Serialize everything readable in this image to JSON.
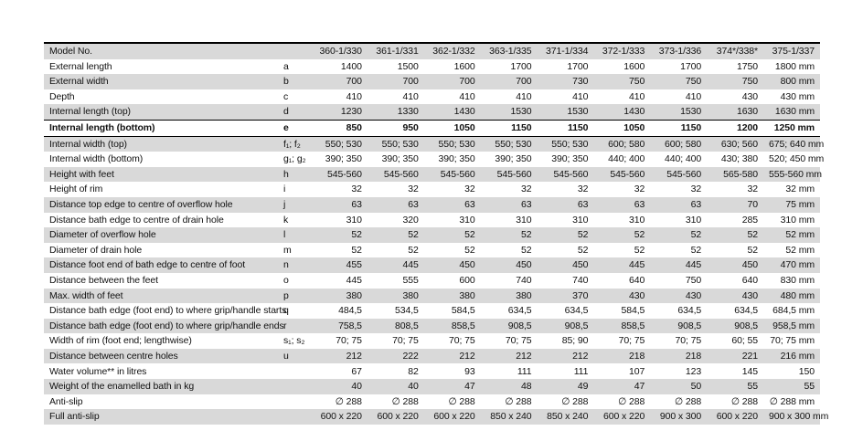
{
  "page": {
    "background": "#ffffff"
  },
  "table": {
    "top_border_color": "#000000",
    "stripe_color": "#d9d9d9",
    "header": {
      "model_label": "Model No.",
      "columns": [
        "360-1/330",
        "361-1/331",
        "362-1/332",
        "363-1/335",
        "371-1/334",
        "372-1/333",
        "373-1/336",
        "374*/338*",
        "375-1/337"
      ]
    },
    "rows": [
      {
        "label": "External length",
        "code": "a",
        "emph": false,
        "values": [
          "1400",
          "1500",
          "1600",
          "1700",
          "1700",
          "1600",
          "1700",
          "1750",
          "1800 mm"
        ]
      },
      {
        "label": "External width",
        "code": "b",
        "emph": false,
        "values": [
          "700",
          "700",
          "700",
          "700",
          "730",
          "750",
          "750",
          "750",
          "800 mm"
        ]
      },
      {
        "label": "Depth",
        "code": "c",
        "emph": false,
        "values": [
          "410",
          "410",
          "410",
          "410",
          "410",
          "410",
          "410",
          "430",
          "430 mm"
        ]
      },
      {
        "label": "Internal length (top)",
        "code": "d",
        "emph": false,
        "values": [
          "1230",
          "1330",
          "1430",
          "1530",
          "1530",
          "1430",
          "1530",
          "1630",
          "1630 mm"
        ]
      },
      {
        "label": "Internal length (bottom)",
        "code": "e",
        "emph": true,
        "values": [
          "850",
          "950",
          "1050",
          "1150",
          "1150",
          "1050",
          "1150",
          "1200",
          "1250 mm"
        ]
      },
      {
        "label": "Internal width (top)",
        "code": "f₁; f₂",
        "emph": false,
        "values": [
          "550; 530",
          "550; 530",
          "550; 530",
          "550; 530",
          "550; 530",
          "600; 580",
          "600; 580",
          "630; 560",
          "675; 640 mm"
        ]
      },
      {
        "label": "Internal width (bottom)",
        "code": "g₁; g₂",
        "emph": false,
        "values": [
          "390; 350",
          "390; 350",
          "390; 350",
          "390; 350",
          "390; 350",
          "440; 400",
          "440; 400",
          "430; 380",
          "520; 450 mm"
        ]
      },
      {
        "label": "Height with feet",
        "code": "h",
        "emph": false,
        "values": [
          "545-560",
          "545-560",
          "545-560",
          "545-560",
          "545-560",
          "545-560",
          "545-560",
          "565-580",
          "555-560 mm"
        ]
      },
      {
        "label": "Height of rim",
        "code": "i",
        "emph": false,
        "values": [
          "32",
          "32",
          "32",
          "32",
          "32",
          "32",
          "32",
          "32",
          "32 mm"
        ]
      },
      {
        "label": "Distance top edge to centre of overflow hole",
        "code": "j",
        "emph": false,
        "values": [
          "63",
          "63",
          "63",
          "63",
          "63",
          "63",
          "63",
          "70",
          "75 mm"
        ]
      },
      {
        "label": "Distance bath edge to centre of drain hole",
        "code": "k",
        "emph": false,
        "values": [
          "310",
          "320",
          "310",
          "310",
          "310",
          "310",
          "310",
          "285",
          "310 mm"
        ]
      },
      {
        "label": "Diameter of overflow hole",
        "code": "l",
        "emph": false,
        "values": [
          "52",
          "52",
          "52",
          "52",
          "52",
          "52",
          "52",
          "52",
          "52 mm"
        ]
      },
      {
        "label": "Diameter of drain hole",
        "code": "m",
        "emph": false,
        "values": [
          "52",
          "52",
          "52",
          "52",
          "52",
          "52",
          "52",
          "52",
          "52 mm"
        ]
      },
      {
        "label": "Distance foot end of bath edge to centre of foot",
        "code": "n",
        "emph": false,
        "values": [
          "455",
          "445",
          "450",
          "450",
          "450",
          "445",
          "445",
          "450",
          "470 mm"
        ]
      },
      {
        "label": "Distance between the feet",
        "code": "o",
        "emph": false,
        "values": [
          "445",
          "555",
          "600",
          "740",
          "740",
          "640",
          "750",
          "640",
          "830 mm"
        ]
      },
      {
        "label": "Max. width of feet",
        "code": "p",
        "emph": false,
        "values": [
          "380",
          "380",
          "380",
          "380",
          "370",
          "430",
          "430",
          "430",
          "480 mm"
        ]
      },
      {
        "label": "Distance bath edge (foot end) to where grip/handle starts",
        "code": "q",
        "emph": false,
        "values": [
          "484,5",
          "534,5",
          "584,5",
          "634,5",
          "634,5",
          "584,5",
          "634,5",
          "634,5",
          "684,5 mm"
        ]
      },
      {
        "label": "Distance bath edge (foot end) to where grip/handle ends",
        "code": "r",
        "emph": false,
        "values": [
          "758,5",
          "808,5",
          "858,5",
          "908,5",
          "908,5",
          "858,5",
          "908,5",
          "908,5",
          "958,5 mm"
        ]
      },
      {
        "label": "Width of rim (foot end; lengthwise)",
        "code": "s₁; s₂",
        "emph": false,
        "values": [
          "70; 75",
          "70; 75",
          "70; 75",
          "70; 75",
          "85; 90",
          "70; 75",
          "70; 75",
          "60; 55",
          "70; 75 mm"
        ]
      },
      {
        "label": "Distance between centre holes",
        "code": "u",
        "emph": false,
        "values": [
          "212",
          "222",
          "212",
          "212",
          "212",
          "218",
          "218",
          "221",
          "216 mm"
        ]
      },
      {
        "label": "Water volume** in litres",
        "code": "",
        "emph": false,
        "values": [
          "67",
          "82",
          "93",
          "111",
          "111",
          "107",
          "123",
          "145",
          "150"
        ]
      },
      {
        "label": "Weight of the enamelled bath in kg",
        "code": "",
        "emph": false,
        "values": [
          "40",
          "40",
          "47",
          "48",
          "49",
          "47",
          "50",
          "55",
          "55"
        ]
      },
      {
        "label": "Anti-slip",
        "code": "",
        "emph": false,
        "values": [
          "∅ 288",
          "∅ 288",
          "∅ 288",
          "∅ 288",
          "∅ 288",
          "∅ 288",
          "∅ 288",
          "∅ 288",
          "∅ 288 mm"
        ]
      },
      {
        "label": "Full anti-slip",
        "code": "",
        "emph": false,
        "values": [
          "600 x 220",
          "600 x 220",
          "600 x 220",
          "850 x 240",
          "850 x 240",
          "600 x 220",
          "900 x 300",
          "600 x 220",
          "900 x 300 mm"
        ]
      }
    ]
  }
}
